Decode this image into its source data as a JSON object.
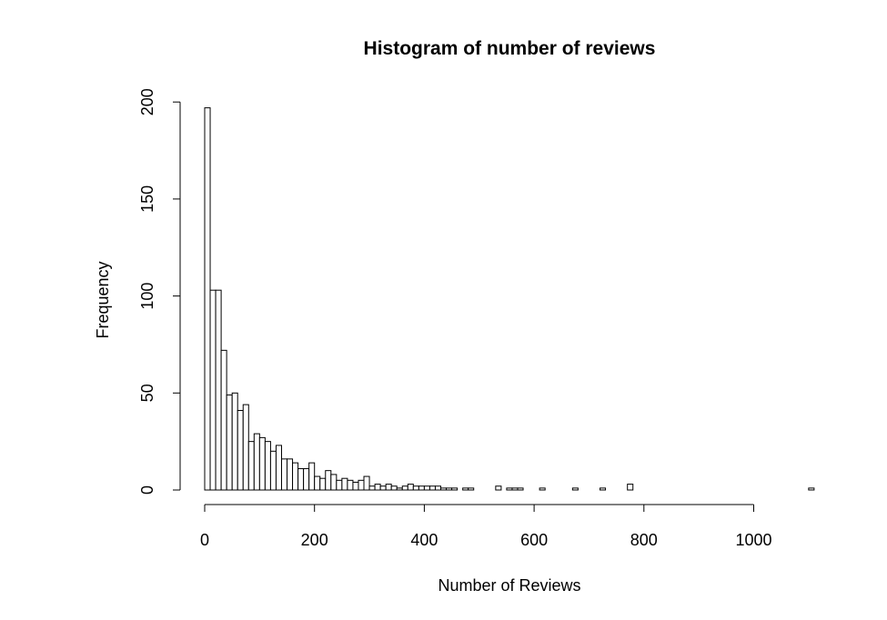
{
  "chart_data": {
    "type": "bar",
    "title": "Histogram of number of reviews",
    "xlabel": "Number of Reviews",
    "ylabel": "Frequency",
    "xlim": [
      0,
      1110
    ],
    "ylim": [
      0,
      200
    ],
    "x_ticks": [
      0,
      200,
      400,
      600,
      800,
      1000
    ],
    "y_ticks": [
      0,
      50,
      100,
      150,
      200
    ],
    "bin_width": 10,
    "bin_start": 0,
    "grid": false,
    "values": [
      197,
      103,
      103,
      72,
      49,
      50,
      41,
      44,
      25,
      29,
      27,
      25,
      20,
      23,
      16,
      16,
      14,
      11,
      11,
      14,
      7,
      6,
      10,
      8,
      5,
      6,
      5,
      4,
      5,
      7,
      2,
      3,
      2,
      3,
      2,
      1,
      2,
      3,
      2,
      2,
      2,
      2,
      2,
      1,
      1,
      1,
      0,
      1,
      1,
      0,
      0,
      0,
      0,
      2,
      0,
      1,
      1,
      1,
      0,
      0,
      0,
      1,
      0,
      0,
      0,
      0,
      0,
      1,
      0,
      0,
      0,
      0,
      1,
      0,
      0,
      0,
      0,
      3,
      0,
      0,
      0,
      0,
      0,
      0,
      0,
      0,
      0,
      0,
      0,
      0,
      0,
      0,
      0,
      0,
      0,
      0,
      0,
      0,
      0,
      0,
      0,
      0,
      0,
      0,
      0,
      0,
      0,
      0,
      0,
      0,
      1
    ]
  }
}
